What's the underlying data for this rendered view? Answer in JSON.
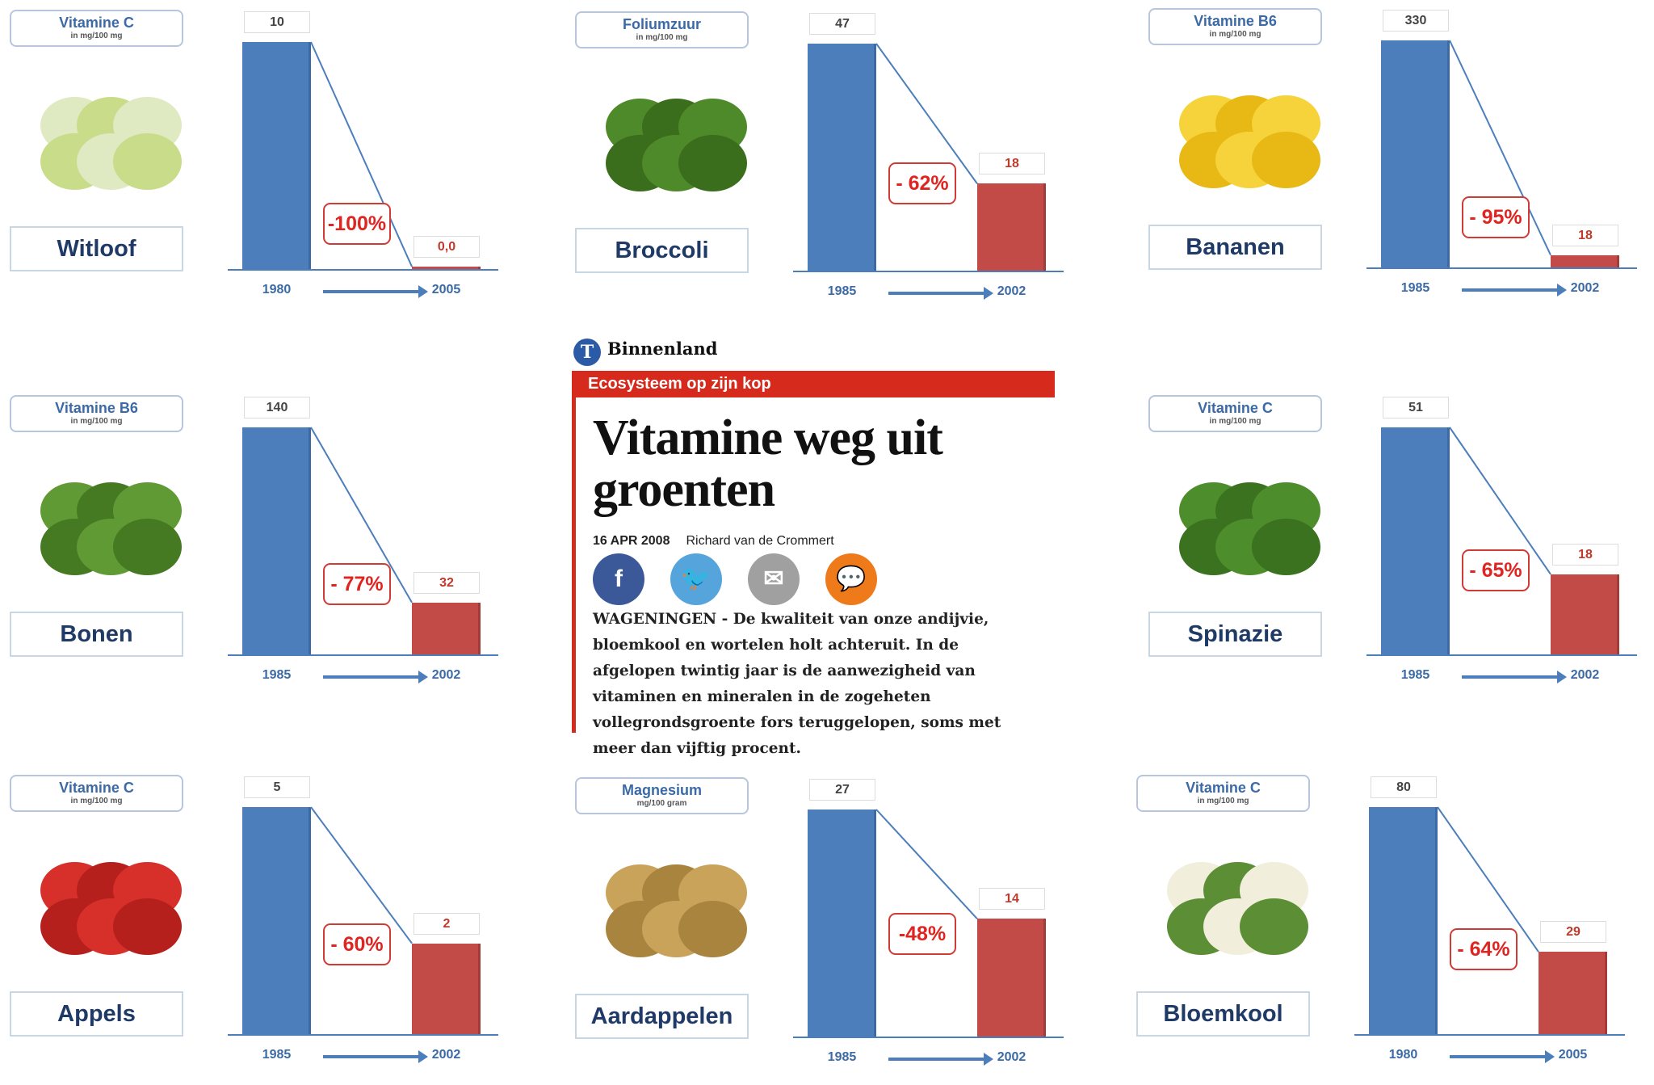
{
  "article": {
    "section": "Binnenland",
    "logo_letter": "T",
    "kicker": "Ecosysteem op zijn kop",
    "headline": "Vitamine weg uit groenten",
    "date": "16 APR 2008",
    "author": "Richard van de Crommert",
    "social": [
      {
        "name": "facebook",
        "glyph": "f",
        "color": "#3b5998"
      },
      {
        "name": "twitter",
        "glyph": "🐦",
        "color": "#55a4dc"
      },
      {
        "name": "email",
        "glyph": "✉",
        "color": "#a0a0a0"
      },
      {
        "name": "comment",
        "glyph": "💬",
        "color": "#ee7a1a"
      }
    ],
    "body": "WAGENINGEN - De kwaliteit van onze andijvie, bloemkool en wortelen holt achteruit. In de afgelopen twintig jaar is de aanwezigheid van vitaminen en mineralen in de zogeheten vollegrondsgroente fors teruggelopen, soms met meer dan vijftig procent."
  },
  "colors": {
    "blue": "#4d7ebc",
    "red": "#c34b47"
  },
  "chart_data": [
    {
      "type": "bar",
      "nutrient": "Vitamine C",
      "unit": "in mg/100 mg",
      "food": "Witloof",
      "categories": [
        "1980",
        "2005"
      ],
      "values": [
        10,
        0
      ],
      "labels": [
        "10",
        "0,0"
      ],
      "change": "-100%",
      "food_colors": [
        "#dfe9c2",
        "#c9dc8a"
      ]
    },
    {
      "type": "bar",
      "nutrient": "Foliumzuur",
      "unit": "in mg/100 mg",
      "food": "Broccoli",
      "categories": [
        "1985",
        "2002"
      ],
      "values": [
        47,
        18
      ],
      "labels": [
        "47",
        "18"
      ],
      "change": "- 62%",
      "food_colors": [
        "#4f8a2a",
        "#3a6d1c"
      ]
    },
    {
      "type": "bar",
      "nutrient": "Vitamine B6",
      "unit": "in mg/100 mg",
      "food": "Bananen",
      "categories": [
        "1985",
        "2002"
      ],
      "values": [
        330,
        18
      ],
      "labels": [
        "330",
        "18"
      ],
      "change": "- 95%",
      "food_colors": [
        "#f6d33a",
        "#e8b915"
      ]
    },
    {
      "type": "bar",
      "nutrient": "Vitamine B6",
      "unit": "in mg/100 mg",
      "food": "Bonen",
      "categories": [
        "1985",
        "2002"
      ],
      "values": [
        140,
        32
      ],
      "labels": [
        "140",
        "32"
      ],
      "change": "- 77%",
      "food_colors": [
        "#5f9a34",
        "#467a22"
      ]
    },
    {
      "type": "bar",
      "nutrient": "Vitamine C",
      "unit": "in mg/100 mg",
      "food": "Spinazie",
      "categories": [
        "1985",
        "2002"
      ],
      "values": [
        51,
        18
      ],
      "labels": [
        "51",
        "18"
      ],
      "change": "- 65%",
      "food_colors": [
        "#4e8d2b",
        "#3a7220"
      ]
    },
    {
      "type": "bar",
      "nutrient": "Vitamine C",
      "unit": "in mg/100 mg",
      "food": "Appels",
      "categories": [
        "1985",
        "2002"
      ],
      "values": [
        5,
        2
      ],
      "labels": [
        "5",
        "2"
      ],
      "change": "- 60%",
      "food_colors": [
        "#d7302a",
        "#b51f1c"
      ]
    },
    {
      "type": "bar",
      "nutrient": "Magnesium",
      "unit": "mg/100 gram",
      "food": "Aardappelen",
      "categories": [
        "1985",
        "2002"
      ],
      "values": [
        27,
        14
      ],
      "labels": [
        "27",
        "14"
      ],
      "change": "-48%",
      "food_colors": [
        "#c9a35a",
        "#a9843f"
      ]
    },
    {
      "type": "bar",
      "nutrient": "Vitamine C",
      "unit": "in mg/100 mg",
      "food": "Bloemkool",
      "categories": [
        "1980",
        "2005"
      ],
      "values": [
        80,
        29
      ],
      "labels": [
        "80",
        "29"
      ],
      "change": "- 64%",
      "food_colors": [
        "#f2eedc",
        "#5b8e35"
      ]
    }
  ]
}
